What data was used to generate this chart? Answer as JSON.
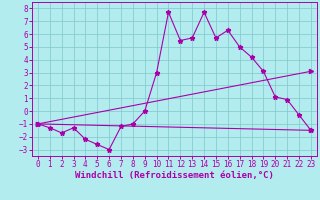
{
  "xlabel": "Windchill (Refroidissement éolien,°C)",
  "background_color": "#b3ecef",
  "grid_color": "#80c8cc",
  "line_color": "#aa00aa",
  "xlim": [
    -0.5,
    23.5
  ],
  "ylim": [
    -3.5,
    8.5
  ],
  "xticks": [
    0,
    1,
    2,
    3,
    4,
    5,
    6,
    7,
    8,
    9,
    10,
    11,
    12,
    13,
    14,
    15,
    16,
    17,
    18,
    19,
    20,
    21,
    22,
    23
  ],
  "yticks": [
    -3,
    -2,
    -1,
    0,
    1,
    2,
    3,
    4,
    5,
    6,
    7,
    8
  ],
  "line1_x": [
    0,
    1,
    2,
    3,
    4,
    5,
    6,
    7,
    8,
    9,
    10,
    11,
    12,
    13,
    14,
    15,
    16,
    17,
    18,
    19,
    20,
    21,
    22,
    23
  ],
  "line1_y": [
    -1.0,
    -1.3,
    -1.7,
    -1.3,
    -2.2,
    -2.6,
    -3.0,
    -1.2,
    -1.0,
    0.0,
    3.0,
    7.7,
    5.5,
    5.7,
    7.7,
    5.7,
    6.3,
    5.0,
    4.2,
    3.1,
    1.1,
    0.9,
    -0.3,
    -1.5
  ],
  "line2_x": [
    0,
    23
  ],
  "line2_y": [
    -1.0,
    -1.5
  ],
  "line3_x": [
    0,
    23
  ],
  "line3_y": [
    -1.0,
    3.1
  ],
  "tick_fontsize": 5.5,
  "label_fontsize": 6.5
}
